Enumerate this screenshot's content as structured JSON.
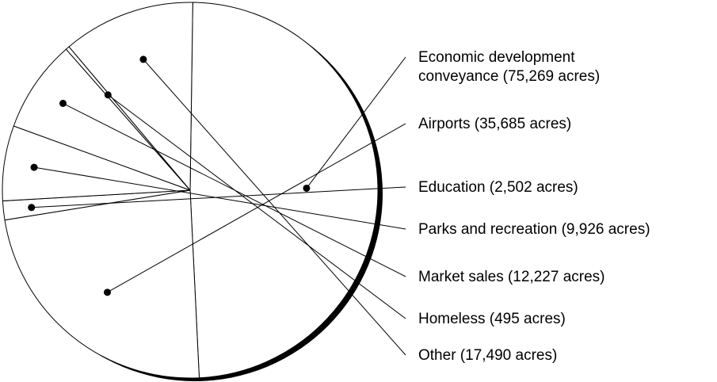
{
  "chart_data": {
    "type": "pie",
    "title": "",
    "unit": "acres",
    "slices": [
      {
        "name": "Economic development conveyance",
        "value": 75269,
        "label_lines": [
          "Economic development",
          "conveyance (75,269 acres)"
        ]
      },
      {
        "name": "Airports",
        "value": 35685,
        "label_lines": [
          "Airports (35,685 acres)"
        ]
      },
      {
        "name": "Education",
        "value": 2502,
        "label_lines": [
          "Education (2,502 acres)"
        ]
      },
      {
        "name": "Parks and recreation",
        "value": 9926,
        "label_lines": [
          "Parks and recreation (9,926 acres)"
        ]
      },
      {
        "name": "Market sales",
        "value": 12227,
        "label_lines": [
          "Market sales (12,227 acres)"
        ]
      },
      {
        "name": "Homeless",
        "value": 495,
        "label_lines": [
          "Homeless (495 acres)"
        ]
      },
      {
        "name": "Other",
        "value": 17490,
        "label_lines": [
          "Other (17,490 acres)"
        ]
      }
    ],
    "legend": "right, leader lines",
    "colors": {
      "fill": "#ffffff",
      "stroke": "#000000",
      "shadow": "#000000"
    }
  }
}
